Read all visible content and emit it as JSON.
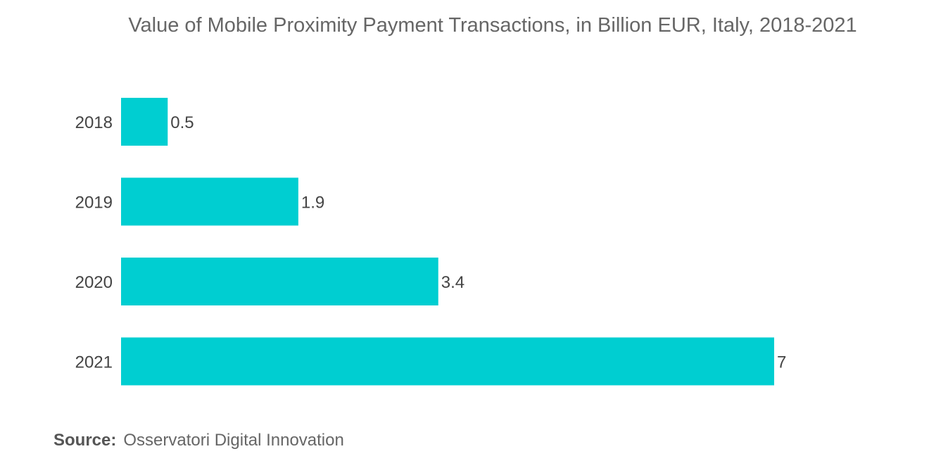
{
  "chart_data": {
    "type": "bar",
    "orientation": "horizontal",
    "title": "Value of Mobile Proximity Payment Transactions, in Billion EUR, Italy, 2018-2021",
    "categories": [
      "2018",
      "2019",
      "2020",
      "2021"
    ],
    "values": [
      0.5,
      1.9,
      3.4,
      7
    ],
    "value_labels": [
      "0.5",
      "1.9",
      "3.4",
      "7"
    ],
    "xlim": [
      0,
      7
    ],
    "grid": false,
    "legend": "none",
    "bar_color": "#00CED1"
  },
  "source": {
    "label": "Source:",
    "text": "Osservatori Digital Innovation"
  }
}
